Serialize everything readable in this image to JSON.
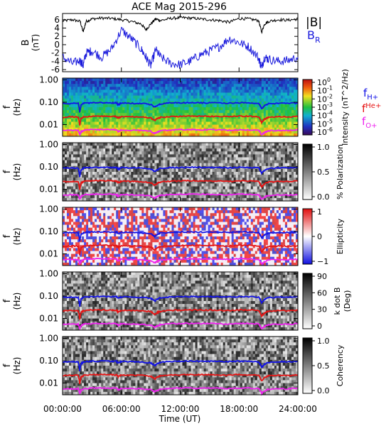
{
  "title": "ACE Mag 2015-296",
  "legend": {
    "abs_b": "|B|",
    "b_r_main": "B",
    "b_r_sub": "R",
    "f_h_main": "f",
    "f_h_sub": "H+",
    "f_he_main": "f",
    "f_he_sup": "He+",
    "f_o_main": "f",
    "f_o_sub": "O+"
  },
  "colors": {
    "abs_b": "#000000",
    "b_r": "#1a1adc",
    "f_h": "#1212e6",
    "f_he": "#e61414",
    "f_o": "#ee22ee"
  },
  "x_axis": {
    "label": "Time (UT)",
    "ticks": [
      "00:00:00",
      "06:00:00",
      "12:00:00",
      "18:00:00",
      "24:00:00"
    ],
    "range_hours": [
      0,
      24
    ]
  },
  "chart_data": [
    {
      "type": "line",
      "panel": "magnetic-field",
      "ylabel_main": "B",
      "ylabel_sub": "(nT)",
      "ylim": [
        -6.5,
        7.5
      ],
      "yticks": [
        "6",
        "4",
        "2",
        "0",
        "-2",
        "-4",
        "-6"
      ],
      "ytick_values": [
        6,
        4,
        2,
        0,
        -2,
        -4,
        -6
      ],
      "x": [
        0,
        1,
        1.8,
        2.1,
        2.4,
        3,
        4,
        5,
        6,
        7,
        8,
        8.5,
        9,
        9.5,
        10,
        11,
        12,
        13,
        14,
        15,
        16,
        17,
        18,
        19,
        20,
        20.3,
        20.6,
        21,
        22,
        23,
        24
      ],
      "series": [
        {
          "name": "|B|",
          "values": [
            5.7,
            6.0,
            5.6,
            3.0,
            5.6,
            6.2,
            6.4,
            6.3,
            6.0,
            5.6,
            5.0,
            3.6,
            5.0,
            6.2,
            5.8,
            6.3,
            6.5,
            6.4,
            6.2,
            6.0,
            5.8,
            5.4,
            6.3,
            6.2,
            5.8,
            3.0,
            5.0,
            5.6,
            6.0,
            5.9,
            6.2
          ]
        },
        {
          "name": "BR",
          "values": [
            -3.0,
            -4.5,
            -3.8,
            -5.0,
            -2.0,
            -1.5,
            -3.0,
            -1.0,
            3.5,
            1.5,
            -1.0,
            -3.0,
            -5.0,
            -1.2,
            -3.0,
            -4.5,
            -4.8,
            -4.0,
            -2.5,
            -1.5,
            -0.5,
            1.5,
            0.5,
            -0.5,
            -3.2,
            -5.5,
            -3.0,
            -3.5,
            -4.0,
            -3.8,
            -3.0
          ]
        }
      ]
    },
    {
      "type": "heatmap",
      "panel": "intensity",
      "ylabel_main": "f",
      "ylabel_sub": "(Hz)",
      "yscale": "log",
      "ylim": [
        0.003,
        1.2
      ],
      "yticks": [
        "1.00",
        "0.10",
        "0.01"
      ],
      "ytick_values": [
        1,
        0.1,
        0.01
      ],
      "colorbar_label": "Intensity (nT^2/Hz)",
      "colorbar_ticks": [
        "10^0",
        "10^-1",
        "10^-2",
        "10^-3",
        "10^-4",
        "10^-5",
        "10^-6"
      ]
    },
    {
      "type": "heatmap",
      "panel": "polarization",
      "ylabel_main": "f",
      "ylabel_sub": "(Hz)",
      "yscale": "log",
      "ylim": [
        0.003,
        1.2
      ],
      "yticks": [
        "1.00",
        "0.10",
        "0.01"
      ],
      "ytick_values": [
        1,
        0.1,
        0.01
      ],
      "colorbar_label": "% Polarization",
      "colorbar_ticks": [
        "1.0",
        "0.5",
        "0.0"
      ],
      "colorbar_range": [
        0,
        1
      ]
    },
    {
      "type": "heatmap",
      "panel": "ellipticity",
      "ylabel_main": "f",
      "ylabel_sub": "(Hz)",
      "yscale": "log",
      "ylim": [
        0.003,
        1.2
      ],
      "yticks": [
        "1.00",
        "0.10",
        "0.01"
      ],
      "ytick_values": [
        1,
        0.1,
        0.01
      ],
      "colorbar_label": "Ellipticity",
      "colorbar_ticks": [
        "1",
        "0",
        "−1"
      ],
      "colorbar_range": [
        -1,
        1
      ]
    },
    {
      "type": "heatmap",
      "panel": "k-dot-b",
      "ylabel_main": "f",
      "ylabel_sub": "(Hz)",
      "yscale": "log",
      "ylim": [
        0.003,
        1.2
      ],
      "yticks": [
        "1.00",
        "0.10",
        "0.01"
      ],
      "ytick_values": [
        1,
        0.1,
        0.01
      ],
      "colorbar_label": "k dot B",
      "colorbar_label2": "(Deg)",
      "colorbar_ticks": [
        "90",
        "60",
        "30",
        "0"
      ],
      "colorbar_range": [
        0,
        90
      ]
    },
    {
      "type": "heatmap",
      "panel": "coherency",
      "ylabel_main": "f",
      "ylabel_sub": "(Hz)",
      "yscale": "log",
      "ylim": [
        0.003,
        1.2
      ],
      "yticks": [
        "1.00",
        "0.10",
        "0.01"
      ],
      "ytick_values": [
        1,
        0.1,
        0.01
      ],
      "colorbar_label": "Coherency",
      "colorbar_ticks": [
        "1.0",
        "0.5",
        "0.0"
      ],
      "colorbar_range": [
        0,
        1
      ]
    }
  ],
  "gyrofrequency_lines": {
    "x_hours": [
      0,
      1,
      1.6,
      1.75,
      1.9,
      2.2,
      3,
      4,
      5,
      5.5,
      5.7,
      6,
      7,
      8,
      9,
      9.4,
      9.7,
      10,
      11,
      12,
      13,
      14,
      15,
      16,
      17,
      18,
      19,
      20,
      20.3,
      20.6,
      21,
      22,
      23,
      24
    ],
    "f_h_hz": [
      0.086,
      0.09,
      0.088,
      0.035,
      0.075,
      0.09,
      0.094,
      0.095,
      0.094,
      0.093,
      0.078,
      0.092,
      0.09,
      0.088,
      0.08,
      0.06,
      0.075,
      0.085,
      0.092,
      0.094,
      0.095,
      0.094,
      0.094,
      0.093,
      0.09,
      0.095,
      0.094,
      0.09,
      0.05,
      0.07,
      0.085,
      0.09,
      0.089,
      0.092
    ],
    "f_he_hz": [
      0.0215,
      0.0225,
      0.022,
      0.009,
      0.019,
      0.0225,
      0.0235,
      0.024,
      0.0235,
      0.023,
      0.0195,
      0.023,
      0.0225,
      0.022,
      0.02,
      0.015,
      0.019,
      0.021,
      0.023,
      0.0235,
      0.024,
      0.0235,
      0.0235,
      0.023,
      0.0225,
      0.024,
      0.0235,
      0.0225,
      0.0125,
      0.0175,
      0.021,
      0.0225,
      0.022,
      0.023
    ],
    "f_o_hz": [
      0.0054,
      0.0056,
      0.0055,
      0.0035,
      0.0048,
      0.0056,
      0.0059,
      0.006,
      0.0059,
      0.0058,
      0.0049,
      0.0058,
      0.0056,
      0.0055,
      0.005,
      0.004,
      0.0047,
      0.0053,
      0.0058,
      0.0059,
      0.006,
      0.0059,
      0.0059,
      0.0058,
      0.0056,
      0.006,
      0.0059,
      0.0056,
      0.0035,
      0.0044,
      0.0053,
      0.0056,
      0.0055,
      0.0058
    ]
  }
}
